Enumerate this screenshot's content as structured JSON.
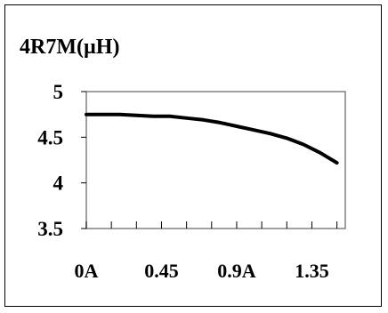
{
  "chart_data": {
    "type": "line",
    "title": "4R7M(µH)",
    "x": [
      0,
      0.1,
      0.2,
      0.3,
      0.4,
      0.5,
      0.6,
      0.7,
      0.8,
      0.9,
      1.0,
      1.1,
      1.2,
      1.3,
      1.4,
      1.5
    ],
    "series": [
      {
        "values": [
          4.75,
          4.75,
          4.75,
          4.74,
          4.73,
          4.73,
          4.71,
          4.69,
          4.66,
          4.62,
          4.58,
          4.54,
          4.49,
          4.42,
          4.33,
          4.22
        ]
      }
    ],
    "xlim": [
      0,
      1.55
    ],
    "ylim": [
      3.5,
      5
    ],
    "x_tick_labels": [
      "0A",
      "0.45",
      "0.9A",
      "1.35"
    ],
    "x_tick_values": [
      0,
      0.45,
      0.9,
      1.35
    ],
    "x_minor_ticks": [
      0.15,
      0.3,
      0.6,
      0.75,
      1.05,
      1.2,
      1.5
    ],
    "y_tick_labels": [
      "5",
      "4.5",
      "4",
      "3.5"
    ],
    "y_tick_values": [
      5,
      4.5,
      4,
      3.5
    ],
    "grid": false,
    "line_color": "#000000"
  }
}
